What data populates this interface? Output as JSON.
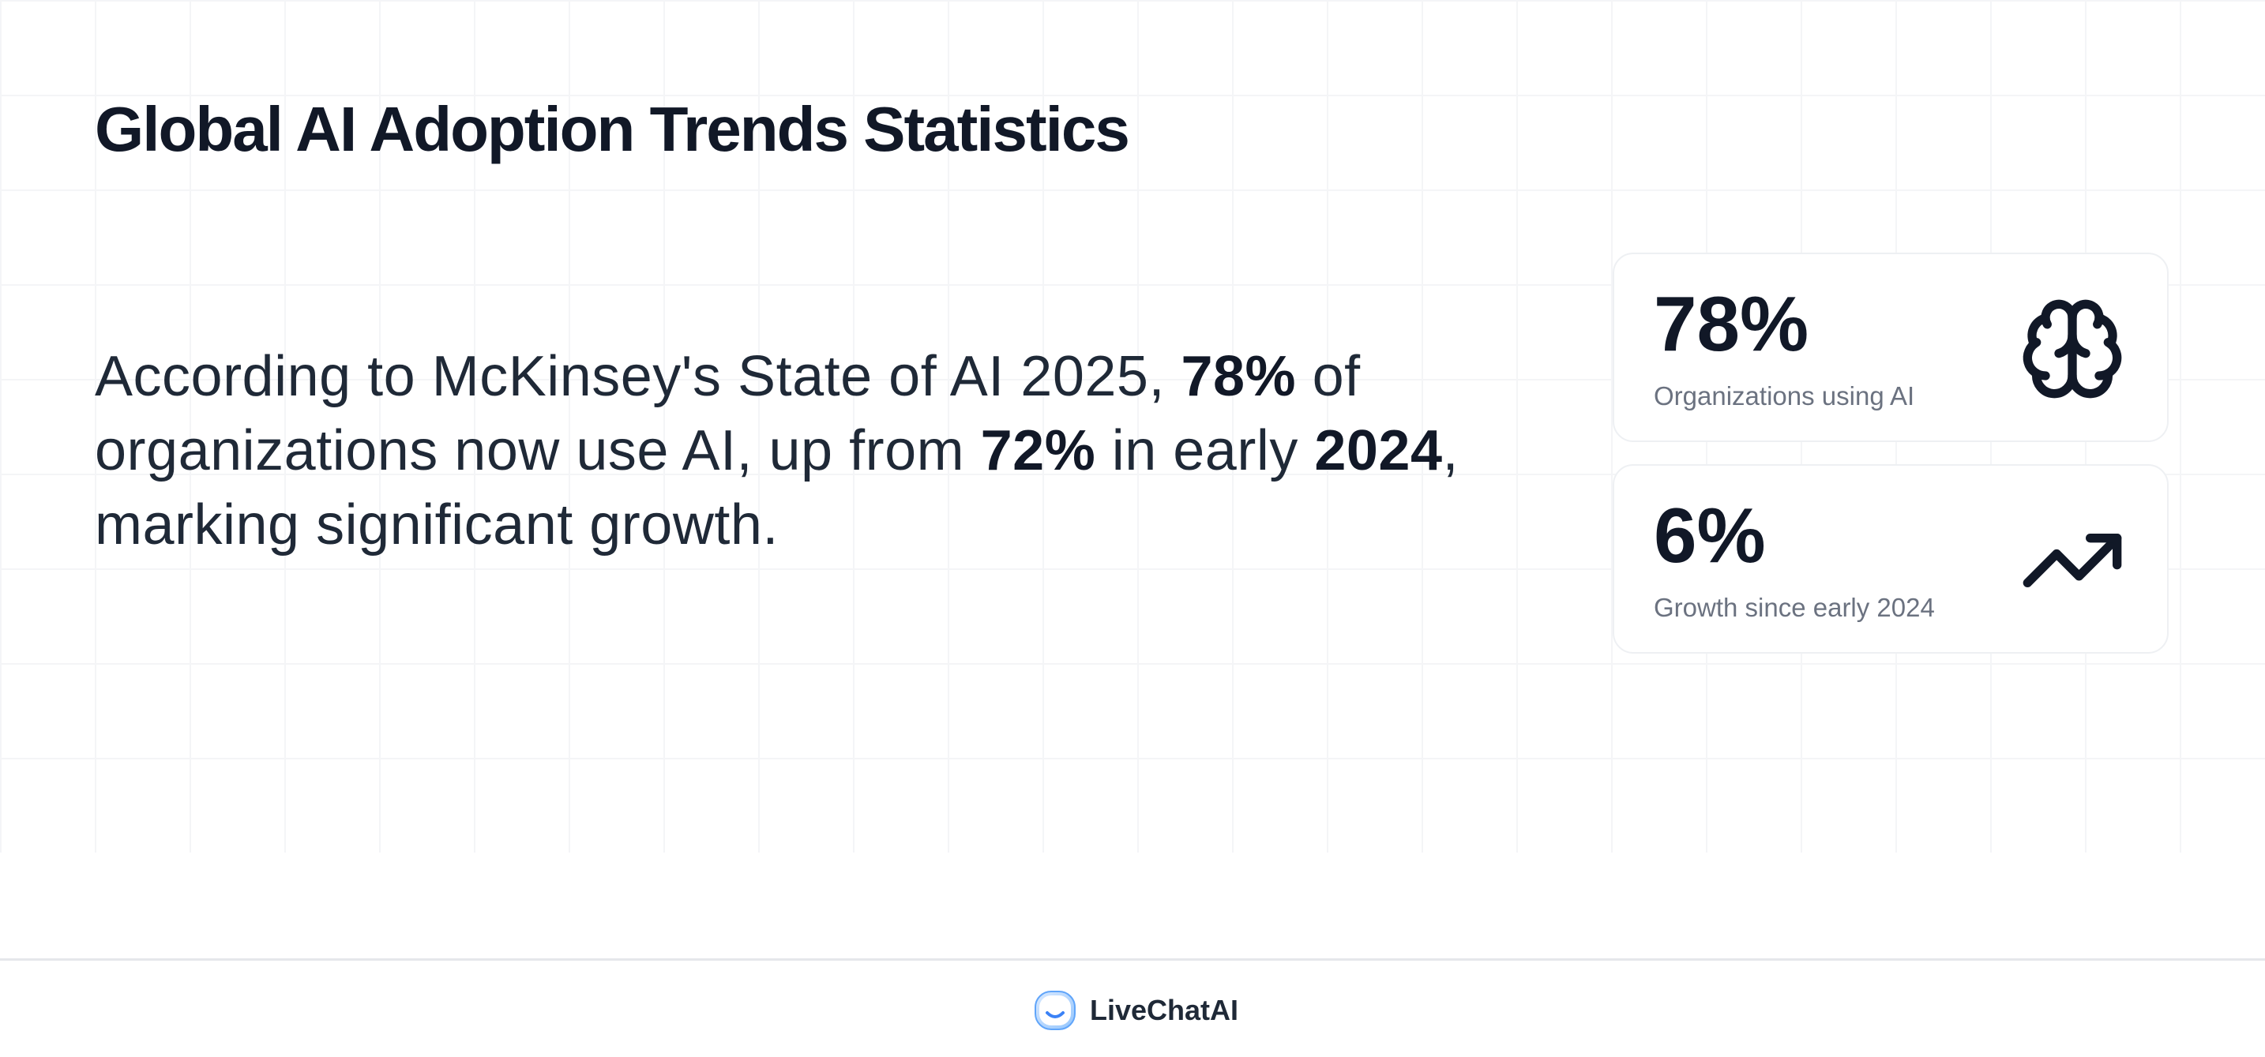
{
  "page": {
    "title": "Global AI Adoption Trends Statistics"
  },
  "lead": {
    "segments": [
      {
        "text": "According to McKinsey's State of AI 2025, ",
        "bold": false
      },
      {
        "text": "78%",
        "bold": true
      },
      {
        "text": " of organizations now use AI, up from ",
        "bold": false
      },
      {
        "text": "72%",
        "bold": true
      },
      {
        "text": " in early ",
        "bold": false
      },
      {
        "text": "2024",
        "bold": true
      },
      {
        "text": ", marking significant growth.",
        "bold": false
      }
    ]
  },
  "stats": [
    {
      "value": "78%",
      "label": "Organizations using AI",
      "icon": "brain-icon"
    },
    {
      "value": "6%",
      "label": "Growth since early 2024",
      "icon": "trending-up-icon"
    }
  ],
  "footer": {
    "brand_name": "LiveChatAI",
    "logo_icon": "livechatai-logo-icon"
  },
  "colors": {
    "heading": "#111827",
    "body_text": "#1f2937",
    "muted_text": "#6b7280",
    "card_border": "#eef0f3",
    "logo_blue": "#3b82f6"
  }
}
